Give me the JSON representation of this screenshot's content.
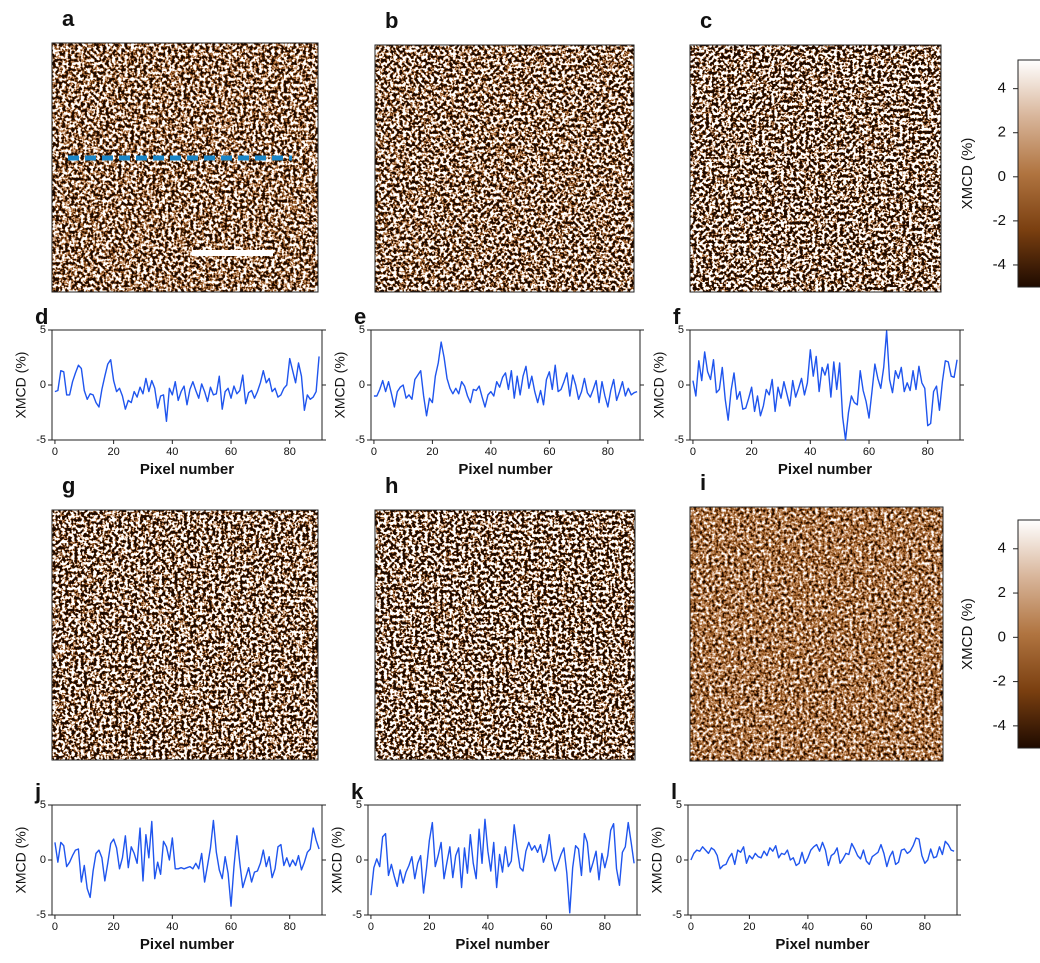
{
  "maps": [
    {
      "label": "a"
    },
    {
      "label": "b"
    },
    {
      "label": "c"
    },
    {
      "label": "g"
    },
    {
      "label": "h"
    },
    {
      "label": "i"
    }
  ],
  "chart_data": [
    {
      "type": "line",
      "label": "d",
      "ylabel": "XMCD (%)",
      "xlabel": "Pixel number",
      "xlim": [
        -1,
        91
      ],
      "ylim": [
        -5,
        5
      ],
      "xticks": [
        0,
        20,
        40,
        60,
        80
      ],
      "yticks": [
        -5,
        0,
        5
      ],
      "series": [
        {
          "color": "#1f55ee",
          "values": [
            -0.6,
            -0.5,
            1.3,
            1.2,
            -0.9,
            -0.9,
            0.3,
            1.1,
            1.8,
            1.5,
            -0.5,
            -1.3,
            -0.8,
            -0.9,
            -1.6,
            -2.0,
            -0.4,
            0.8,
            1.9,
            2.3,
            0.4,
            -0.6,
            -0.3,
            -1.0,
            -2.2,
            -1.4,
            -1.6,
            -0.6,
            -1.1,
            -0.2,
            -0.8,
            0.6,
            -0.6,
            0.4,
            -0.3,
            -2.1,
            -1.0,
            -0.9,
            -3.3,
            -0.3,
            -0.9,
            0.3,
            -1.4,
            -0.6,
            -0.1,
            -1.8,
            -0.4,
            0.3,
            -0.5,
            -1.2,
            0.1,
            -0.6,
            -1.5,
            -0.2,
            -0.9,
            -0.8,
            0.8,
            -2.2,
            -0.6,
            -0.3,
            -1.2,
            -0.1,
            -0.8,
            -0.5,
            0.9,
            -1.7,
            -0.7,
            -0.5,
            -1.2,
            -0.6,
            0.2,
            1.3,
            0.2,
            0.6,
            -0.6,
            -0.3,
            -1.1,
            -0.9,
            -0.3,
            0.0,
            2.4,
            1.3,
            0.2,
            2.0,
            0.8,
            -2.3,
            -0.9,
            -1.3,
            -1.1,
            -0.6,
            2.6
          ]
        }
      ]
    },
    {
      "type": "line",
      "label": "e",
      "ylabel": "XMCD (%)",
      "xlabel": "Pixel number",
      "xlim": [
        -1,
        91
      ],
      "ylim": [
        -5,
        5
      ],
      "xticks": [
        0,
        20,
        40,
        60,
        80
      ],
      "yticks": [
        -5,
        0,
        5
      ],
      "series": [
        {
          "color": "#1f55ee",
          "values": [
            -1.0,
            -1.0,
            -0.4,
            0.4,
            -0.6,
            0.3,
            -0.8,
            -2.0,
            -0.6,
            -0.2,
            0.0,
            -1.2,
            -0.9,
            -1.3,
            0.5,
            0.9,
            1.3,
            -1.0,
            -2.8,
            -1.2,
            -1.6,
            0.8,
            2.0,
            3.9,
            2.5,
            0.6,
            -0.3,
            -0.8,
            -0.3,
            -0.8,
            0.3,
            -0.1,
            -1.0,
            -1.6,
            -0.4,
            -0.5,
            -0.1,
            -1.1,
            -2.0,
            -0.9,
            -0.6,
            -1.0,
            0.3,
            -0.2,
            0.7,
            1.1,
            -0.4,
            1.3,
            -1.2,
            0.8,
            -0.9,
            0.8,
            1.7,
            -0.3,
            0.8,
            -0.6,
            -1.6,
            -0.5,
            -1.8,
            0.5,
            1.2,
            -0.4,
            1.8,
            -0.6,
            -0.4,
            0.3,
            1.1,
            -1.0,
            0.9,
            0.0,
            -1.3,
            -0.6,
            0.6,
            -0.7,
            -1.1,
            -0.4,
            0.4,
            -1.6,
            0.3,
            -1.0,
            -2.0,
            -0.5,
            0.5,
            -1.4,
            -0.6,
            0.3,
            -1.0,
            -0.3,
            -0.9,
            -0.7,
            -0.6
          ]
        }
      ]
    },
    {
      "type": "line",
      "label": "f",
      "ylabel": "XMCD (%)",
      "xlabel": "Pixel number",
      "xlim": [
        -1,
        91
      ],
      "ylim": [
        -5,
        5
      ],
      "xticks": [
        0,
        20,
        40,
        60,
        80
      ],
      "yticks": [
        -5,
        0,
        5
      ],
      "series": [
        {
          "color": "#1f55ee",
          "values": [
            0.4,
            -1.0,
            2.2,
            0.4,
            3.0,
            1.2,
            0.5,
            2.3,
            -0.7,
            -0.4,
            1.6,
            -1.3,
            -3.2,
            -0.5,
            1.1,
            -1.3,
            -0.6,
            -2.2,
            -2.1,
            -1.2,
            -0.2,
            -2.4,
            -1.0,
            -2.8,
            -1.9,
            -0.4,
            -0.9,
            0.5,
            -2.4,
            -0.2,
            -1.2,
            0.3,
            -0.8,
            -1.9,
            0.4,
            -1.1,
            -0.3,
            0.6,
            -0.9,
            0.2,
            3.2,
            0.8,
            2.6,
            -0.6,
            1.6,
            0.9,
            1.9,
            -1.1,
            2.1,
            -0.4,
            2.0,
            -2.9,
            -5.0,
            -2.5,
            -1.0,
            -1.6,
            -1.8,
            1.3,
            -0.5,
            -1.5,
            -3.0,
            -0.6,
            1.9,
            0.6,
            -0.3,
            1.6,
            4.9,
            0.5,
            -0.7,
            1.3,
            0.6,
            1.6,
            -0.6,
            0.2,
            -0.5,
            1.3,
            -0.4,
            1.7,
            0.2,
            -0.3,
            -3.7,
            -3.5,
            -0.6,
            -0.1,
            -2.3,
            0.3,
            2.2,
            2.1,
            0.8,
            0.7,
            2.3
          ]
        }
      ]
    },
    {
      "type": "line",
      "label": "j",
      "ylabel": "XMCD (%)",
      "xlabel": "Pixel number",
      "xlim": [
        -1,
        91
      ],
      "ylim": [
        -5,
        5
      ],
      "xticks": [
        0,
        20,
        40,
        60,
        80
      ],
      "yticks": [
        -5,
        0,
        5
      ],
      "series": [
        {
          "color": "#1f55ee",
          "values": [
            1.6,
            -0.2,
            1.6,
            1.3,
            -0.6,
            -0.2,
            0.4,
            0.9,
            1.0,
            -2.0,
            -0.5,
            -2.6,
            -3.4,
            -1.0,
            0.6,
            0.9,
            0.2,
            -1.9,
            -0.3,
            1.5,
            1.9,
            1.1,
            -0.8,
            0.2,
            2.2,
            -0.7,
            1.2,
            0.6,
            -0.3,
            2.9,
            -1.9,
            2.3,
            0.2,
            3.5,
            -1.7,
            -0.2,
            -1.3,
            1.7,
            1.2,
            0.0,
            2.0,
            -0.8,
            -0.8,
            -0.7,
            -0.8,
            -0.7,
            -0.6,
            -0.8,
            -0.3,
            -0.8,
            0.6,
            -2.0,
            -0.5,
            1.1,
            3.6,
            0.7,
            -0.9,
            -1.7,
            0.3,
            -1.2,
            -4.2,
            -0.6,
            2.2,
            -0.3,
            -2.5,
            -1.6,
            -0.7,
            -2.0,
            -1.1,
            -1.0,
            -0.3,
            0.9,
            -0.6,
            0.3,
            -1.6,
            -0.8,
            1.2,
            1.4,
            -0.5,
            0.2,
            -0.6,
            0.0,
            -0.5,
            0.4,
            -0.9,
            -0.2,
            0.7,
            1.0,
            2.9,
            1.8,
            1.0
          ]
        }
      ]
    },
    {
      "type": "line",
      "label": "k",
      "ylabel": "XMCD (%)",
      "xlabel": "Pixel number",
      "xlim": [
        -1,
        91
      ],
      "ylim": [
        -5,
        5
      ],
      "xticks": [
        0,
        20,
        40,
        60,
        80
      ],
      "yticks": [
        -5,
        0,
        5
      ],
      "series": [
        {
          "color": "#1f55ee",
          "values": [
            -3.2,
            -0.7,
            0.1,
            -0.6,
            2.1,
            2.4,
            -1.4,
            -0.4,
            -1.5,
            -2.4,
            -0.9,
            -2.1,
            -1.1,
            -0.5,
            0.3,
            -1.7,
            -0.3,
            0.4,
            -3.0,
            -0.8,
            1.8,
            3.4,
            -0.6,
            0.4,
            1.6,
            -1.7,
            -0.2,
            1.2,
            -1.6,
            0.4,
            1.1,
            -2.5,
            1.1,
            -1.2,
            2.3,
            -0.3,
            -1.7,
            2.8,
            -0.3,
            3.7,
            0.8,
            -1.0,
            1.6,
            -2.5,
            0.5,
            -1.1,
            1.2,
            -0.6,
            -0.1,
            3.2,
            1.1,
            -0.7,
            -1.0,
            0.8,
            1.6,
            0.9,
            1.3,
            0.7,
            1.4,
            -0.2,
            0.6,
            2.3,
            0.0,
            -1.0,
            -0.3,
            0.5,
            1.1,
            -1.2,
            -4.8,
            -0.7,
            1.3,
            1.0,
            -1.4,
            2.4,
            1.6,
            -1.1,
            -0.2,
            0.8,
            -1.8,
            0.6,
            -0.7,
            0.4,
            2.7,
            3.3,
            -0.8,
            -2.3,
            0.7,
            1.2,
            3.4,
            1.6,
            -0.3
          ]
        }
      ]
    },
    {
      "type": "line",
      "label": "l",
      "ylabel": "XMCD (%)",
      "xlabel": "Pixel number",
      "xlim": [
        -1,
        91
      ],
      "ylim": [
        -5,
        5
      ],
      "xticks": [
        0,
        20,
        40,
        60,
        80
      ],
      "yticks": [
        -5,
        0,
        5
      ],
      "series": [
        {
          "color": "#1f55ee",
          "values": [
            0.0,
            0.6,
            0.9,
            0.8,
            1.2,
            0.9,
            0.6,
            1.1,
            0.9,
            0.4,
            -0.8,
            -0.5,
            -0.4,
            0.2,
            0.6,
            -0.4,
            0.9,
            0.7,
            1.2,
            -0.3,
            0.4,
            0.1,
            0.6,
            0.3,
            0.2,
            0.8,
            0.4,
            1.1,
            0.8,
            1.3,
            0.2,
            0.6,
            0.5,
            0.9,
            0.0,
            0.2,
            -0.5,
            -0.3,
            0.7,
            -0.3,
            0.2,
            0.9,
            1.2,
            1.4,
            0.8,
            1.6,
            0.9,
            -0.5,
            0.4,
            0.6,
            1.1,
            -0.3,
            0.1,
            0.6,
            0.5,
            1.5,
            1.0,
            0.4,
            0.1,
            0.9,
            -0.1,
            -0.4,
            0.3,
            0.5,
            0.7,
            1.4,
            0.6,
            -0.6,
            0.3,
            0.8,
            -0.4,
            -0.2,
            0.9,
            1.0,
            0.6,
            0.8,
            1.3,
            2.0,
            1.9,
            0.4,
            -0.3,
            0.0,
            1.0,
            0.2,
            0.3,
            1.2,
            0.5,
            1.7,
            1.4,
            0.9,
            0.8
          ]
        }
      ]
    },
    {
      "type": "colorbar",
      "label": "XMCD (%)",
      "ylim": [
        -5,
        5.3
      ],
      "yticks": [
        -4,
        -2,
        0,
        2,
        4
      ],
      "colors": [
        "#1e0a00",
        "#7a3f10",
        "#b07440",
        "#d8b59a",
        "#ffffff"
      ]
    },
    {
      "type": "colorbar",
      "label": "XMCD (%)",
      "ylim": [
        -5,
        5.3
      ],
      "yticks": [
        -4,
        -2,
        0,
        2,
        4
      ],
      "colors": [
        "#1e0a00",
        "#7a3f10",
        "#b07440",
        "#d8b59a",
        "#ffffff"
      ]
    }
  ]
}
